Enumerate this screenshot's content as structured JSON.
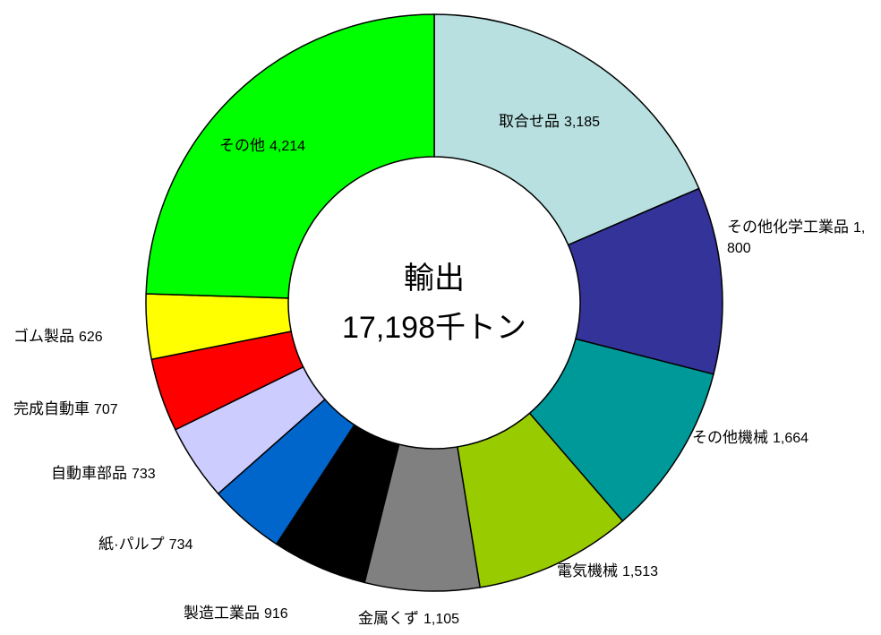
{
  "chart_data": {
    "type": "donut",
    "center_title": "輸出",
    "total_label": "17,198千トン",
    "categories": [
      "取合せ品",
      "その他化学工業品",
      "その他機械",
      "電気機械",
      "金属くず",
      "製造工業品",
      "紙·パルプ",
      "自動車部品",
      "完成自動車",
      "ゴム製品",
      "その他"
    ],
    "values": [
      3185,
      1800,
      1664,
      1513,
      1105,
      916,
      734,
      733,
      707,
      626,
      4214
    ],
    "value_labels": [
      "3,185",
      "1,800",
      "1,664",
      "1,513",
      "1,105",
      "916",
      "734",
      "733",
      "707",
      "626",
      "4,214"
    ],
    "colors": [
      "#b8e0e0",
      "#333399",
      "#009999",
      "#99cc00",
      "#808080",
      "#000000",
      "#0066cc",
      "#ccccff",
      "#ff0000",
      "#ffff00",
      "#00ff00"
    ]
  }
}
